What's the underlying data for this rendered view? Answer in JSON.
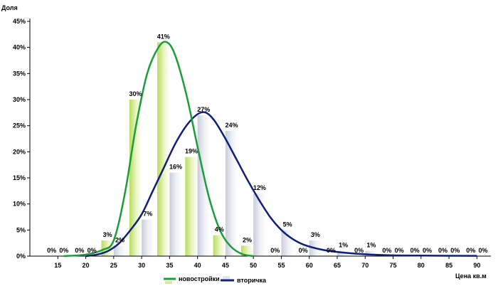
{
  "chart_data": {
    "type": "bar",
    "ylabel": "Доля",
    "xlabel": "Цена кв.м",
    "ylim": [
      0,
      45
    ],
    "yticks": [
      "0%",
      "5%",
      "10%",
      "15%",
      "20%",
      "25%",
      "30%",
      "35%",
      "40%",
      "45%"
    ],
    "yticks_values": [
      0,
      5,
      10,
      15,
      20,
      25,
      30,
      35,
      40,
      45
    ],
    "categories": [
      "15",
      "20",
      "25",
      "30",
      "35",
      "40",
      "45",
      "50",
      "55",
      "60",
      "65",
      "70",
      "75",
      "80",
      "85",
      "90"
    ],
    "series": [
      {
        "name": "новостройки",
        "color": "#1a9e3a",
        "bar_color": "#d7ec9a",
        "values": [
          0,
          0,
          3,
          30,
          41,
          19,
          4,
          2,
          0,
          0,
          0,
          0,
          0,
          0,
          0,
          0
        ],
        "labels": [
          "0%",
          "0%",
          "3%",
          "30%",
          "41%",
          "19%",
          "4%",
          "2%",
          "0%",
          "0%",
          "0%",
          "0%",
          "0%",
          "0%",
          "0%",
          "0%"
        ],
        "curve": [
          [
            16,
            0
          ],
          [
            20,
            0.3
          ],
          [
            23,
            1.2
          ],
          [
            25,
            3
          ],
          [
            27,
            12
          ],
          [
            29,
            25
          ],
          [
            31,
            35
          ],
          [
            33,
            40
          ],
          [
            34.5,
            41
          ],
          [
            36,
            38.5
          ],
          [
            38,
            31
          ],
          [
            40,
            21
          ],
          [
            42,
            11.5
          ],
          [
            44,
            5
          ],
          [
            46,
            1.8
          ],
          [
            48,
            0.4
          ],
          [
            50,
            0
          ]
        ]
      },
      {
        "name": "вторичка",
        "color": "#0f1f7a",
        "bar_color": "#e3e5ee",
        "values": [
          0,
          0,
          2,
          7,
          16,
          27,
          24,
          12,
          5,
          3,
          1,
          1,
          0,
          0,
          0,
          0
        ],
        "labels": [
          "0%",
          "0%",
          "2%",
          "7%",
          "16%",
          "27%",
          "24%",
          "12%",
          "5%",
          "3%",
          "1%",
          "1%",
          "0%",
          "0%",
          "0%",
          "0%"
        ],
        "curve": [
          [
            20,
            0
          ],
          [
            22,
            0.3
          ],
          [
            24,
            1.0
          ],
          [
            26,
            2.5
          ],
          [
            28,
            5
          ],
          [
            30,
            8
          ],
          [
            32,
            12.5
          ],
          [
            34,
            17
          ],
          [
            36,
            21.5
          ],
          [
            38,
            25
          ],
          [
            40,
            27.2
          ],
          [
            41.5,
            27.5
          ],
          [
            43,
            26
          ],
          [
            45,
            22.5
          ],
          [
            47,
            18.5
          ],
          [
            49,
            14.5
          ],
          [
            51,
            10.8
          ],
          [
            53,
            7.5
          ],
          [
            55,
            5
          ],
          [
            57,
            3.3
          ],
          [
            59,
            2.2
          ],
          [
            62,
            1.3
          ],
          [
            65,
            0.8
          ],
          [
            70,
            0.35
          ],
          [
            75,
            0.15
          ],
          [
            80,
            0.1
          ],
          [
            90,
            0.05
          ]
        ]
      }
    ],
    "legend": [
      "новостройки",
      "вторичка"
    ]
  }
}
